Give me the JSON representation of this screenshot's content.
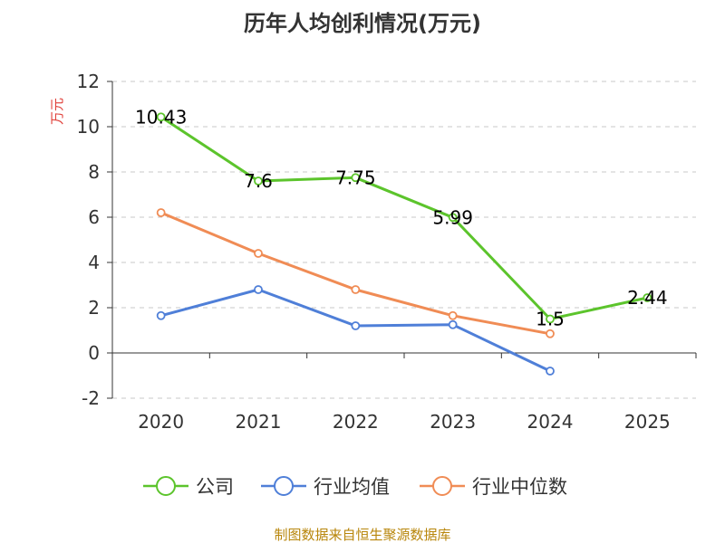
{
  "chart_data": {
    "type": "line",
    "title": "历年人均创利情况(万元)",
    "ylabel": "万元",
    "xlabel": "",
    "categories": [
      "2020",
      "2021",
      "2022",
      "2023",
      "2024",
      "2025"
    ],
    "ylim": [
      -2,
      12
    ],
    "yticks": [
      12,
      10,
      8,
      6,
      4,
      2,
      0,
      -2
    ],
    "ytick_labels": [
      "12",
      "10",
      "8",
      "6",
      "4",
      "2",
      "0",
      "-2"
    ],
    "grid": "horizontal dashed",
    "legend_position": "bottom",
    "series": [
      {
        "name": "公司",
        "color": "#5cc42c",
        "values": [
          10.43,
          7.6,
          7.75,
          5.99,
          1.5,
          2.44
        ],
        "data_labels": [
          "10.43",
          "7.6",
          "7.75",
          "5.99",
          "1.5",
          "2.44"
        ]
      },
      {
        "name": "行业均值",
        "color": "#4f7fd8",
        "values": [
          1.65,
          2.8,
          1.2,
          1.25,
          -0.8,
          null
        ]
      },
      {
        "name": "行业中位数",
        "color": "#f08c55",
        "values": [
          6.2,
          4.4,
          2.8,
          1.65,
          0.85,
          null
        ]
      }
    ],
    "source": "制图数据来自恒生聚源数据库"
  }
}
